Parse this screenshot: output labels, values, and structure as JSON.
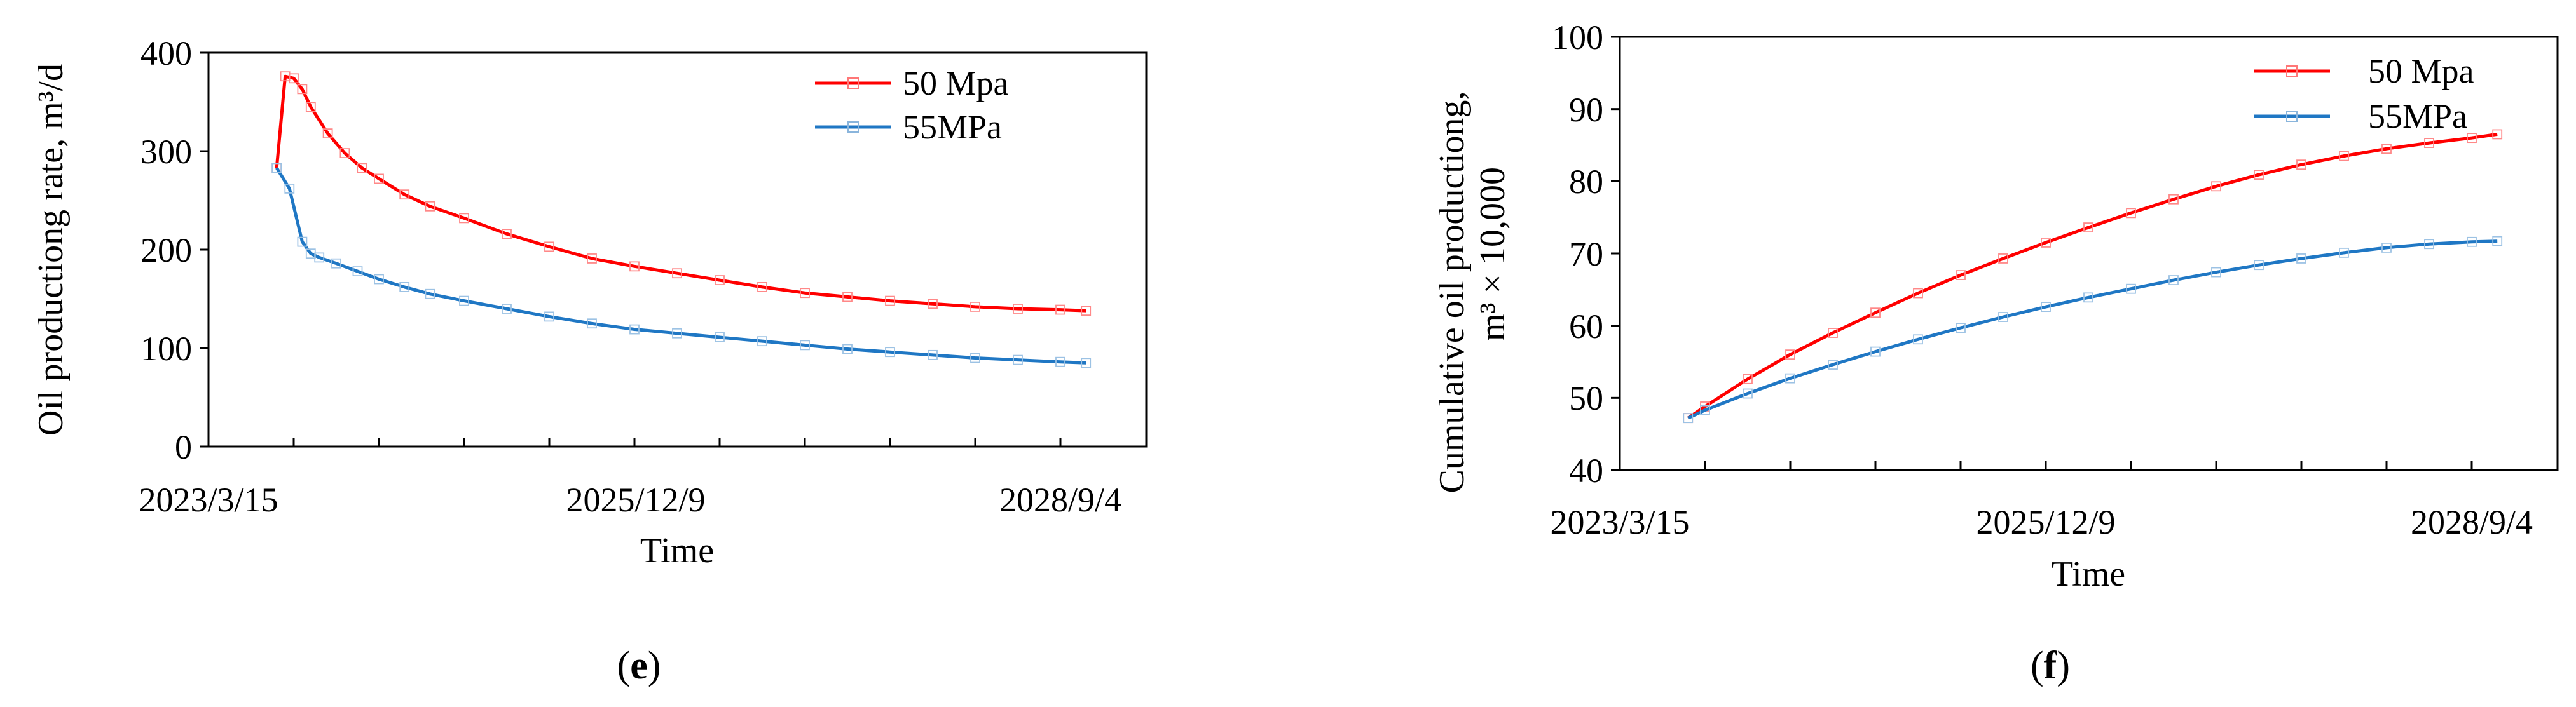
{
  "chart_data": [
    {
      "type": "line",
      "panel_label": "(e)",
      "panel_letter": "e",
      "title": "",
      "xlabel": "Time",
      "ylabel": "Oil productiong rate, m³/d",
      "ylim": [
        0,
        400
      ],
      "yticks": [
        0,
        100,
        200,
        300,
        400
      ],
      "xlim": [
        0,
        2100
      ],
      "xtick_labels": [
        {
          "label": "2023/3/15",
          "x": 0
        },
        {
          "label": "2025/12/9",
          "x": 1000
        },
        {
          "label": "2028/9/4",
          "x": 2000
        }
      ],
      "x_minor_count": 10,
      "legend_position": "top-right",
      "series": [
        {
          "name": "50 Mpa",
          "color": "#ff0000",
          "x": [
            160,
            180,
            200,
            220,
            240,
            280,
            320,
            360,
            400,
            460,
            520,
            600,
            700,
            800,
            900,
            1000,
            1100,
            1200,
            1300,
            1400,
            1500,
            1600,
            1700,
            1800,
            1900,
            2000,
            2060
          ],
          "y": [
            283,
            376,
            374,
            363,
            345,
            318,
            298,
            283,
            272,
            256,
            244,
            232,
            216,
            203,
            191,
            183,
            176,
            169,
            162,
            156,
            152,
            148,
            145,
            142,
            140,
            139,
            138
          ]
        },
        {
          "name": "55MPa",
          "color": "#1f77c4",
          "x": [
            160,
            190,
            220,
            240,
            260,
            300,
            350,
            400,
            460,
            520,
            600,
            700,
            800,
            900,
            1000,
            1100,
            1200,
            1300,
            1400,
            1500,
            1600,
            1700,
            1800,
            1900,
            2000,
            2060
          ],
          "y": [
            283,
            262,
            208,
            196,
            192,
            186,
            178,
            170,
            162,
            155,
            148,
            140,
            132,
            125,
            119,
            115,
            111,
            107,
            103,
            99,
            96,
            93,
            90,
            88,
            86,
            85
          ]
        }
      ]
    },
    {
      "type": "line",
      "panel_label": "(f)",
      "panel_letter": "f",
      "title": "",
      "xlabel": "Time",
      "ylabel_line1": "Cumulative oil productiong,",
      "ylabel_line2": "m³   × 10,000",
      "ylim": [
        40,
        100
      ],
      "yticks": [
        40,
        50,
        60,
        70,
        80,
        90,
        100
      ],
      "xlim": [
        0,
        2100
      ],
      "xtick_labels": [
        {
          "label": "2023/3/15",
          "x": 0
        },
        {
          "label": "2025/12/9",
          "x": 1000
        },
        {
          "label": "2028/9/4",
          "x": 2000
        }
      ],
      "x_minor_count": 10,
      "legend_position": "top-right",
      "series": [
        {
          "name": "50 Mpa",
          "color": "#ff0000",
          "x": [
            160,
            200,
            300,
            400,
            500,
            600,
            700,
            800,
            900,
            1000,
            1100,
            1200,
            1300,
            1400,
            1500,
            1600,
            1700,
            1800,
            1900,
            2000,
            2060
          ],
          "y": [
            47.2,
            48.8,
            52.6,
            56.0,
            59.0,
            61.8,
            64.5,
            67.0,
            69.3,
            71.5,
            73.6,
            75.6,
            77.5,
            79.3,
            80.9,
            82.3,
            83.5,
            84.5,
            85.3,
            86.0,
            86.5
          ]
        },
        {
          "name": "55MPa",
          "color": "#1f77c4",
          "x": [
            160,
            200,
            300,
            400,
            500,
            600,
            700,
            800,
            900,
            1000,
            1100,
            1200,
            1300,
            1400,
            1500,
            1600,
            1700,
            1800,
            1900,
            2000,
            2060
          ],
          "y": [
            47.2,
            48.3,
            50.6,
            52.7,
            54.6,
            56.4,
            58.1,
            59.7,
            61.2,
            62.6,
            63.9,
            65.1,
            66.3,
            67.4,
            68.4,
            69.3,
            70.1,
            70.8,
            71.3,
            71.6,
            71.7
          ]
        }
      ]
    }
  ]
}
